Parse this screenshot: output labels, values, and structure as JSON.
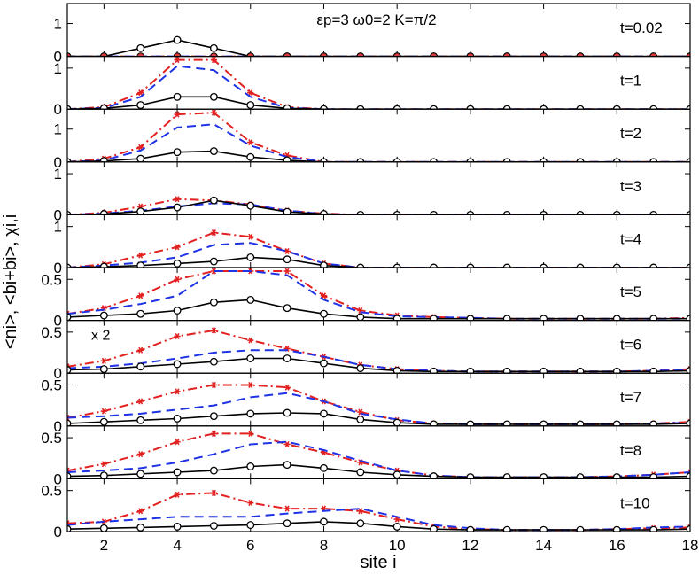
{
  "chart_data": {
    "type": "line",
    "annotation": "εp=3   ω0=2   K=π/2",
    "ylabel": "<ni>, <bi+bi>, χi,i",
    "xlabel": "site i",
    "xlim": [
      1,
      18
    ],
    "x_ticks": [
      "2",
      "4",
      "6",
      "8",
      "10",
      "12",
      "14",
      "16",
      "18"
    ],
    "x": [
      1,
      2,
      3,
      4,
      5,
      6,
      7,
      8,
      9,
      10,
      11,
      12,
      13,
      14,
      15,
      16,
      17,
      18
    ],
    "series_styles": [
      {
        "key": "ni",
        "color": "#000000",
        "dash": "solid",
        "marker": "open-circle"
      },
      {
        "key": "bb",
        "color": "#1f33e6",
        "dash": "dashed",
        "marker": "none"
      },
      {
        "key": "chi",
        "color": "#e32020",
        "dash": "dash-dot",
        "marker": "star"
      }
    ],
    "panels": [
      {
        "label": "t=0.02",
        "ylim": [
          0,
          1.5
        ],
        "yticks": [
          "0",
          "1"
        ],
        "ni": [
          0,
          0,
          0.25,
          0.5,
          0.25,
          0,
          0,
          0,
          0,
          0,
          0,
          0,
          0,
          0,
          0,
          0,
          0,
          0
        ],
        "bb": [
          0,
          0,
          0,
          0,
          0,
          0,
          0,
          0,
          0,
          0,
          0,
          0,
          0,
          0,
          0,
          0,
          0,
          0
        ],
        "chi": [
          0,
          0,
          0,
          0,
          0,
          0,
          0,
          0,
          0,
          0,
          0,
          0,
          0,
          0,
          0,
          0,
          0,
          0
        ]
      },
      {
        "label": "t=1",
        "ylim": [
          0,
          1.2
        ],
        "yticks": [
          "0",
          "1"
        ],
        "ni": [
          0,
          0.02,
          0.1,
          0.3,
          0.3,
          0.1,
          0.02,
          0,
          0,
          0,
          0,
          0,
          0,
          0,
          0,
          0,
          0,
          0
        ],
        "bb": [
          0,
          0.03,
          0.3,
          1.05,
          0.95,
          0.3,
          0.03,
          0,
          0,
          0,
          0,
          0,
          0,
          0,
          0,
          0,
          0,
          0
        ],
        "chi": [
          0,
          0.05,
          0.4,
          1.5,
          1.5,
          0.4,
          0.05,
          0,
          0,
          0,
          0,
          0,
          0,
          0,
          0,
          0,
          0,
          0
        ]
      },
      {
        "label": "t=2",
        "ylim": [
          0,
          1.5
        ],
        "yticks": [
          "0",
          "1"
        ],
        "ni": [
          0,
          0.03,
          0.1,
          0.3,
          0.33,
          0.15,
          0.05,
          0,
          0,
          0,
          0,
          0,
          0,
          0,
          0,
          0,
          0,
          0
        ],
        "bb": [
          0,
          0.05,
          0.35,
          1.05,
          1.15,
          0.5,
          0.15,
          0,
          0,
          0,
          0,
          0,
          0,
          0,
          0,
          0,
          0,
          0
        ],
        "chi": [
          0,
          0.1,
          0.45,
          1.45,
          1.5,
          0.6,
          0.2,
          0,
          0,
          0,
          0,
          0,
          0,
          0,
          0,
          0,
          0,
          0
        ]
      },
      {
        "label": "t=3",
        "ylim": [
          0,
          1.2
        ],
        "yticks": [
          "0",
          "1"
        ],
        "ni": [
          0,
          0.02,
          0.08,
          0.18,
          0.35,
          0.22,
          0.07,
          0.02,
          0,
          0,
          0,
          0,
          0,
          0,
          0,
          0,
          0,
          0
        ],
        "bb": [
          0,
          0.03,
          0.1,
          0.2,
          0.28,
          0.25,
          0.1,
          0.02,
          0,
          0,
          0,
          0,
          0,
          0,
          0,
          0,
          0,
          0
        ],
        "chi": [
          0,
          0.05,
          0.2,
          0.38,
          0.35,
          0.25,
          0.1,
          0.03,
          0,
          0,
          0,
          0,
          0,
          0,
          0,
          0,
          0,
          0
        ]
      },
      {
        "label": "t=4",
        "ylim": [
          0,
          1.2
        ],
        "yticks": [
          "0",
          "1"
        ],
        "ni": [
          0,
          0.02,
          0.05,
          0.1,
          0.15,
          0.25,
          0.2,
          0.05,
          0,
          0,
          0,
          0,
          0,
          0,
          0,
          0,
          0,
          0
        ],
        "bb": [
          0,
          0.05,
          0.12,
          0.25,
          0.55,
          0.6,
          0.4,
          0.1,
          0,
          0,
          0,
          0,
          0,
          0,
          0,
          0,
          0,
          0
        ],
        "chi": [
          0,
          0.08,
          0.3,
          0.5,
          0.85,
          0.75,
          0.4,
          0.1,
          0,
          0,
          0,
          0,
          0,
          0,
          0,
          0,
          0,
          0
        ]
      },
      {
        "label": "t=5",
        "ylim": [
          0,
          0.6
        ],
        "yticks": [
          "0",
          "0.5"
        ],
        "ni": [
          0.04,
          0.06,
          0.08,
          0.12,
          0.22,
          0.25,
          0.15,
          0.08,
          0.04,
          0.02,
          0.02,
          0.02,
          0.02,
          0.02,
          0.02,
          0.02,
          0.02,
          0.02
        ],
        "bb": [
          0.08,
          0.13,
          0.2,
          0.3,
          0.6,
          0.65,
          0.55,
          0.25,
          0.1,
          0.05,
          0.04,
          0.03,
          0.02,
          0.02,
          0.02,
          0.02,
          0.02,
          0.02
        ],
        "chi": [
          0.08,
          0.15,
          0.3,
          0.5,
          0.8,
          0.85,
          0.6,
          0.3,
          0.12,
          0.06,
          0.04,
          0.03,
          0.02,
          0.02,
          0.02,
          0.02,
          0.02,
          0.03
        ]
      },
      {
        "label": "t=6",
        "ylim": [
          0,
          0.6
        ],
        "yticks": [
          "0",
          "0.5"
        ],
        "note": "x 2",
        "ni": [
          0.04,
          0.05,
          0.08,
          0.11,
          0.14,
          0.18,
          0.18,
          0.12,
          0.06,
          0.03,
          0.02,
          0.02,
          0.02,
          0.02,
          0.02,
          0.02,
          0.02,
          0.03
        ],
        "bb": [
          0.06,
          0.08,
          0.12,
          0.18,
          0.25,
          0.28,
          0.28,
          0.2,
          0.1,
          0.05,
          0.03,
          0.02,
          0.02,
          0.02,
          0.02,
          0.02,
          0.03,
          0.04
        ],
        "chi": [
          0.08,
          0.15,
          0.28,
          0.45,
          0.52,
          0.4,
          0.3,
          0.2,
          0.1,
          0.05,
          0.03,
          0.02,
          0.02,
          0.02,
          0.02,
          0.02,
          0.03,
          0.05
        ]
      },
      {
        "label": "t=7",
        "ylim": [
          0,
          0.6
        ],
        "yticks": [
          "0",
          "0.5"
        ],
        "ni": [
          0.03,
          0.05,
          0.07,
          0.09,
          0.12,
          0.15,
          0.16,
          0.15,
          0.08,
          0.04,
          0.02,
          0.02,
          0.02,
          0.02,
          0.02,
          0.02,
          0.02,
          0.03
        ],
        "bb": [
          0.1,
          0.12,
          0.15,
          0.2,
          0.25,
          0.35,
          0.4,
          0.3,
          0.15,
          0.08,
          0.03,
          0.02,
          0.02,
          0.02,
          0.02,
          0.02,
          0.03,
          0.04
        ],
        "chi": [
          0.1,
          0.18,
          0.3,
          0.42,
          0.5,
          0.5,
          0.47,
          0.3,
          0.17,
          0.07,
          0.03,
          0.02,
          0.02,
          0.02,
          0.02,
          0.02,
          0.03,
          0.05
        ]
      },
      {
        "label": "t=8",
        "ylim": [
          0,
          0.6
        ],
        "yticks": [
          "0",
          "0.5"
        ],
        "ni": [
          0.03,
          0.04,
          0.06,
          0.08,
          0.1,
          0.15,
          0.17,
          0.13,
          0.08,
          0.05,
          0.03,
          0.02,
          0.02,
          0.02,
          0.02,
          0.02,
          0.02,
          0.03
        ],
        "bb": [
          0.08,
          0.1,
          0.13,
          0.2,
          0.3,
          0.42,
          0.45,
          0.35,
          0.22,
          0.1,
          0.04,
          0.02,
          0.02,
          0.02,
          0.02,
          0.03,
          0.05,
          0.08
        ],
        "chi": [
          0.1,
          0.18,
          0.3,
          0.45,
          0.55,
          0.55,
          0.42,
          0.32,
          0.2,
          0.1,
          0.04,
          0.02,
          0.02,
          0.02,
          0.02,
          0.03,
          0.05,
          0.08
        ]
      },
      {
        "label": "t=10",
        "ylim": [
          0,
          0.6
        ],
        "yticks": [
          "0",
          "0.5"
        ],
        "ni": [
          0.03,
          0.04,
          0.05,
          0.06,
          0.07,
          0.08,
          0.1,
          0.12,
          0.1,
          0.06,
          0.03,
          0.02,
          0.02,
          0.02,
          0.02,
          0.02,
          0.02,
          0.03
        ],
        "bb": [
          0.08,
          0.12,
          0.15,
          0.18,
          0.18,
          0.18,
          0.22,
          0.25,
          0.28,
          0.18,
          0.08,
          0.04,
          0.02,
          0.02,
          0.02,
          0.03,
          0.05,
          0.06
        ],
        "chi": [
          0.1,
          0.12,
          0.25,
          0.45,
          0.47,
          0.35,
          0.28,
          0.28,
          0.25,
          0.15,
          0.06,
          0.03,
          0.02,
          0.02,
          0.02,
          0.03,
          0.04,
          0.05
        ]
      }
    ]
  }
}
